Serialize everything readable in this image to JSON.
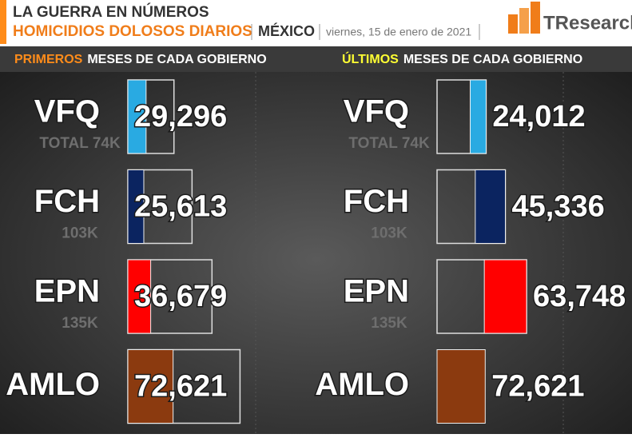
{
  "header": {
    "title": "LA GUERRA EN NÚMEROS",
    "subtitle": "HOMICIDIOS DOLOSOS DIARIOS",
    "place": "MÉXICO",
    "date": "viernes, 15 de enero de 2021",
    "logo": "TResearch"
  },
  "chart_data": [
    {
      "type": "bar",
      "anchor": "start",
      "title_highlight": "PRIMEROS",
      "highlight_color": "#ff8c1a",
      "title": "MESES DE CADA GOBIERNO",
      "categories": [
        "VFQ",
        "FCH",
        "EPN",
        "AMLO"
      ],
      "values": [
        29296,
        25613,
        36679,
        72621
      ],
      "value_labels": [
        "29,296",
        "25,613",
        "36,679",
        "72,621"
      ],
      "totals": [
        74000,
        103000,
        135000,
        180000
      ],
      "total_labels": [
        "TOTAL 74K",
        "103K",
        "135K",
        null
      ],
      "colors": [
        "#29aae2",
        "#0b2460",
        "#ff0000",
        "#8b3a0f"
      ],
      "xlim": [
        0,
        200000
      ]
    },
    {
      "type": "bar",
      "anchor": "end",
      "title_highlight": "ÚLTIMOS",
      "highlight_color": "#ffff33",
      "title": "MESES DE CADA GOBIERNO",
      "categories": [
        "VFQ",
        "FCH",
        "EPN",
        "AMLO"
      ],
      "values": [
        24012,
        45336,
        63748,
        72621
      ],
      "value_labels": [
        "24,012",
        "45,336",
        "63,748",
        "72,621"
      ],
      "totals": [
        74000,
        103000,
        135000,
        null
      ],
      "total_labels": [
        "TOTAL 74K",
        "103K",
        "135K",
        null
      ],
      "colors": [
        "#29aae2",
        "#0b2460",
        "#ff0000",
        "#8b3a0f"
      ],
      "xlim": [
        0,
        200000
      ]
    }
  ]
}
